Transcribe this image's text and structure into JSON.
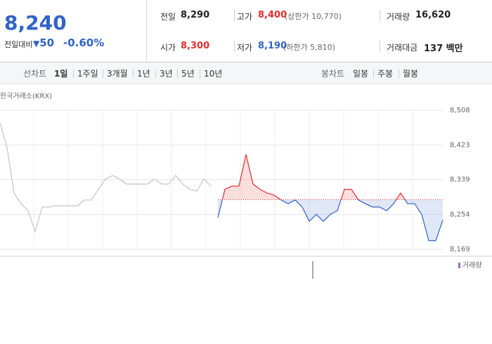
{
  "quote": {
    "price": "8,240",
    "change_label": "전일대비",
    "change": "50",
    "change_rate": "-0.60%"
  },
  "summary": [
    [
      {
        "label": "전일",
        "value": "8,290"
      },
      {
        "label": "고가",
        "value": "8,400",
        "note": "(상한가 10,770)"
      },
      {
        "label": "거래량",
        "value": "16,620"
      }
    ],
    [
      {
        "label": "시가",
        "value": "8,300"
      },
      {
        "label": "저가",
        "value": "8,190",
        "note": "(하한가 5,810)"
      },
      {
        "label": "거래대금",
        "value": "137 백만"
      }
    ]
  ],
  "tabs": {
    "line_label": "선차트",
    "line": [
      "1일",
      "1주일",
      "3개월",
      "1년",
      "3년",
      "5년",
      "10년"
    ],
    "candle_label": "봉차트",
    "candle": [
      "일봉",
      "주봉",
      "월봉"
    ]
  },
  "chart_data": {
    "type": "line",
    "source": "한국거래소(KRX)",
    "volume_label": "거래량",
    "ylim": [
      8169,
      8508
    ],
    "yticks": [
      {
        "value": 8508,
        "label": "8,508"
      },
      {
        "value": 8423,
        "label": "8,423"
      },
      {
        "value": 8339,
        "label": "8,339"
      },
      {
        "value": 8254,
        "label": "8,254"
      },
      {
        "value": 8169,
        "label": "8,169"
      }
    ],
    "grid": true,
    "baseline": 8290,
    "series": [
      {
        "color": "#c4c4c4",
        "values": [
          8477,
          8417,
          8306,
          8280,
          8263,
          8212,
          8272,
          8272,
          8275,
          8275,
          8275,
          8275,
          8289,
          8289,
          8315,
          8340,
          8349,
          8340,
          8328,
          8328,
          8328,
          8328,
          8340,
          8328,
          8328,
          8349,
          8328,
          8315,
          8311,
          8340,
          8323,
          null,
          null,
          null,
          null,
          null,
          null,
          null,
          null,
          null,
          null,
          null,
          null,
          null,
          null,
          null,
          null,
          null,
          null,
          null,
          null,
          null,
          null,
          null,
          null,
          null,
          null,
          null,
          null,
          null,
          null,
          null,
          null,
          null
        ]
      },
      {
        "color_up": "#e52b2b",
        "color_down": "#2f63c7",
        "values": [
          null,
          null,
          null,
          null,
          null,
          null,
          null,
          null,
          null,
          null,
          null,
          null,
          null,
          null,
          null,
          null,
          null,
          null,
          null,
          null,
          null,
          null,
          null,
          null,
          null,
          null,
          null,
          null,
          null,
          null,
          null,
          8246,
          8315,
          8323,
          8323,
          8400,
          8328,
          8315,
          8306,
          8301,
          8289,
          8280,
          8289,
          8272,
          8237,
          8254,
          8237,
          8254,
          8263,
          8315,
          8315,
          8289,
          8280,
          8272,
          8272,
          8263,
          8280,
          8306,
          8280,
          8280,
          8254,
          8190,
          8190,
          8240
        ]
      }
    ]
  }
}
